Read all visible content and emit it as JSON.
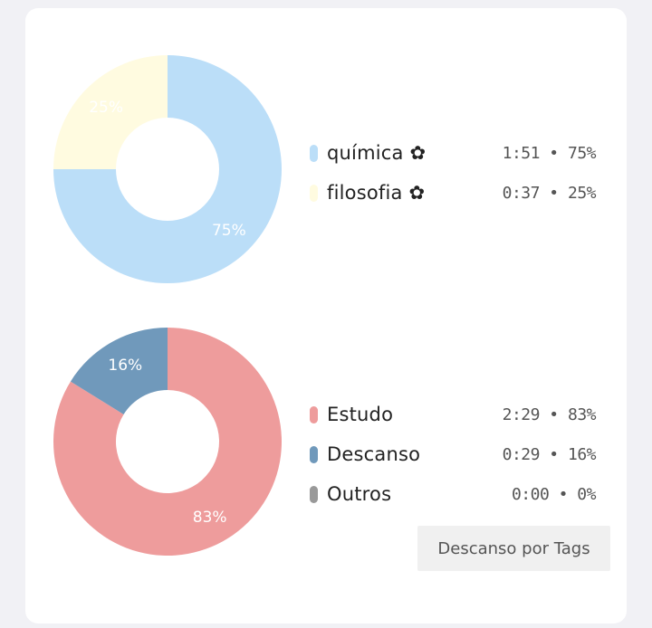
{
  "chart_data": [
    {
      "type": "pie",
      "categories": [
        "química ✿",
        "filosofia ✿"
      ],
      "values": [
        75,
        25
      ],
      "times": [
        "1:51",
        "0:37"
      ],
      "slice_labels": [
        "75%",
        "25%"
      ],
      "colors": [
        "#bbdef8",
        "#fffbe0"
      ],
      "legend": [
        {
          "name": "química ✿",
          "value": "1:51 • 75%",
          "color": "#bbdef8"
        },
        {
          "name": "filosofia ✿",
          "value": "0:37 • 25%",
          "color": "#fffbe0"
        }
      ]
    },
    {
      "type": "pie",
      "categories": [
        "Estudo",
        "Descanso",
        "Outros"
      ],
      "values": [
        83,
        16,
        0
      ],
      "times": [
        "2:29",
        "0:29",
        "0:00"
      ],
      "slice_labels": [
        "83%",
        "16%",
        ""
      ],
      "colors": [
        "#ee9c9c",
        "#7099bb",
        "#999999"
      ],
      "legend": [
        {
          "name": "Estudo",
          "value": "2:29 • 83%",
          "color": "#ee9c9c"
        },
        {
          "name": "Descanso",
          "value": "0:29 • 16%",
          "color": "#7099bb"
        },
        {
          "name": "Outros",
          "value": "0:00 • 0%",
          "color": "#999999"
        }
      ]
    }
  ],
  "button": {
    "label": "Descanso por Tags"
  }
}
